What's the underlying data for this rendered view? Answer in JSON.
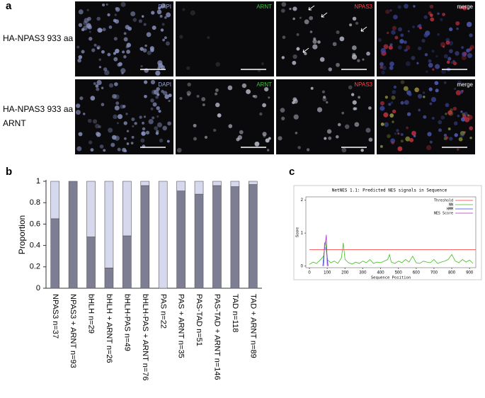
{
  "panel_a": {
    "label": "a",
    "rows": [
      {
        "lines": [
          "HA-NPAS3 933 aa"
        ],
        "channels": [
          "DAPI",
          "ARNT",
          "NPAS3",
          "merge"
        ]
      },
      {
        "lines": [
          "HA-NPAS3 933 aa",
          "ARNT"
        ],
        "channels": [
          "DAPI",
          "ARNT",
          "NPAS3",
          "merge"
        ]
      }
    ]
  },
  "chart_data": [
    {
      "type": "stacked-bar",
      "panel_label": "b",
      "y_label": "Proportion",
      "categories": [
        "NPAS3 n=37",
        "NPAS3 + ARNT n=93",
        "bHLH n=29",
        "bHLH + ARNT n=26",
        "bHLH-PAS n=49",
        "bHLH-PAS + ARNT n=76",
        "PAS n=22",
        "PAS + ARNT n=35",
        "PAS-TAD n=51",
        "PAS-TAD + ARNT n=146",
        "TAD n=118",
        "TAD + ARNT n=89"
      ],
      "series": [
        {
          "color": "#7d7d94",
          "values": [
            0.65,
            1,
            0.48,
            0.19,
            0.49,
            0.96,
            0,
            0.91,
            0.88,
            0.96,
            0.95,
            0.97
          ]
        },
        {
          "color": "#d6d9ee",
          "values": [
            0.35,
            0,
            0.52,
            0.81,
            0.51,
            0.04,
            1,
            0.09,
            0.12,
            0.04,
            0.05,
            0.03
          ]
        }
      ],
      "ylim": [
        0,
        1
      ],
      "yticks": [
        0,
        0.2,
        0.4,
        0.6,
        0.8,
        1
      ]
    },
    {
      "type": "line",
      "panel_label": "c",
      "title": "NetNES 1.1: Predicted NES signals in Sequence",
      "x_label": "Sequence Position",
      "y_label": "Score",
      "xlim": [
        -20,
        935
      ],
      "xticks": [
        0,
        100,
        200,
        300,
        400,
        500,
        600,
        700,
        800,
        900
      ],
      "ylim": [
        -0.05,
        2.1
      ],
      "yticks": [
        0,
        1,
        2
      ],
      "series": [
        {
          "name": "Threshold",
          "color": "#ff3030",
          "x": [
            0,
            935
          ],
          "values": [
            0.5,
            0.5
          ]
        },
        {
          "name": "NN",
          "color": "#44bb22",
          "x": [
            0,
            20,
            40,
            60,
            80,
            90,
            100,
            120,
            140,
            160,
            180,
            190,
            200,
            220,
            240,
            260,
            280,
            300,
            320,
            340,
            360,
            380,
            400,
            420,
            440,
            450,
            460,
            480,
            500,
            520,
            540,
            560,
            580,
            600,
            620,
            640,
            660,
            680,
            700,
            720,
            740,
            760,
            780,
            800,
            820,
            840,
            860,
            880,
            900,
            920
          ],
          "values": [
            0.05,
            0.12,
            0.08,
            0.18,
            0.3,
            0.75,
            0.2,
            0.1,
            0.15,
            0.08,
            0.25,
            0.7,
            0.2,
            0.1,
            0.06,
            0.12,
            0.08,
            0.15,
            0.1,
            0.2,
            0.08,
            0.12,
            0.1,
            0.15,
            0.2,
            0.35,
            0.12,
            0.08,
            0.15,
            0.1,
            0.2,
            0.12,
            0.3,
            0.1,
            0.08,
            0.15,
            0.12,
            0.1,
            0.2,
            0.08,
            0.12,
            0.15,
            0.2,
            0.35,
            0.15,
            0.1,
            0.2,
            0.12,
            0.18,
            0.08
          ]
        },
        {
          "name": "HMM",
          "color": "#3344dd",
          "x": [
            75,
            85,
            95,
            105
          ],
          "values": [
            0,
            0.55,
            0.55,
            0
          ]
        },
        {
          "name": "NES Score",
          "color": "#aa33cc",
          "x": [
            80,
            85,
            90,
            95,
            100
          ],
          "values": [
            0,
            0.7,
            0.7,
            0.95,
            0
          ]
        }
      ]
    }
  ]
}
